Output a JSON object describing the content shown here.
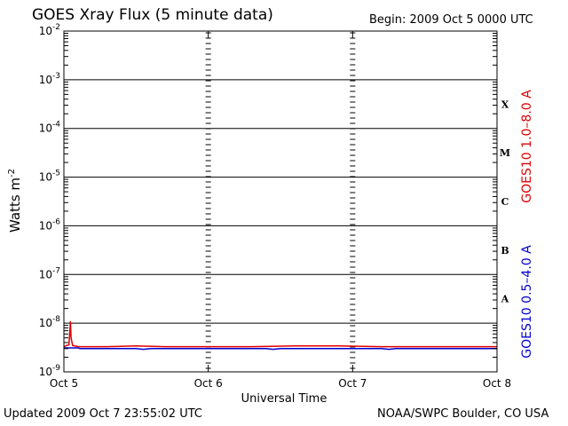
{
  "header": {
    "title": "GOES Xray Flux (5 minute data)",
    "begin": "Begin:  2009 Oct 5 0000 UTC"
  },
  "footer": {
    "updated": "Updated 2009 Oct  7 23:55:02 UTC",
    "credit": "NOAA/SWPC Boulder, CO USA"
  },
  "chart_data": {
    "type": "line",
    "title": "GOES Xray Flux (5 minute data)",
    "xlabel": "Universal Time",
    "ylabel": "Watts m",
    "ylabel_exponent": "-2",
    "x_ticks": [
      "Oct 5",
      "Oct 6",
      "Oct 7",
      "Oct 8"
    ],
    "x_range_days": [
      0,
      3
    ],
    "y_scale": "log",
    "ylim": [
      1e-09,
      0.01
    ],
    "y_ticks": [
      {
        "base": "10",
        "exp": "-9"
      },
      {
        "base": "10",
        "exp": "-8"
      },
      {
        "base": "10",
        "exp": "-7"
      },
      {
        "base": "10",
        "exp": "-6"
      },
      {
        "base": "10",
        "exp": "-5"
      },
      {
        "base": "10",
        "exp": "-4"
      },
      {
        "base": "10",
        "exp": "-3"
      },
      {
        "base": "10",
        "exp": "-2"
      }
    ],
    "flare_classes": [
      "A",
      "B",
      "C",
      "M",
      "X"
    ],
    "grid": "horizontal lines at each decade; dashed vertical lines at day boundaries",
    "series": [
      {
        "name": "GOES10 1.0–8.0 A",
        "color": "#e00000",
        "x": [
          0,
          0.02,
          0.035,
          0.04,
          0.045,
          0.05,
          0.06,
          0.1,
          0.3,
          0.5,
          0.7,
          1.0,
          1.3,
          1.6,
          1.9,
          2.2,
          2.5,
          2.8,
          3.0
        ],
        "y": [
          3.3e-09,
          3.5e-09,
          3.6e-09,
          6e-09,
          1.1e-08,
          5e-09,
          3.5e-09,
          3.3e-09,
          3.3e-09,
          3.4e-09,
          3.3e-09,
          3.3e-09,
          3.3e-09,
          3.4e-09,
          3.4e-09,
          3.3e-09,
          3.3e-09,
          3.3e-09,
          3.3e-09
        ]
      },
      {
        "name": "GOES10 0.5–4.0 A",
        "color": "#0000d0",
        "x": [
          0,
          0.1,
          0.11,
          0.3,
          0.5,
          0.55,
          0.6,
          0.8,
          1.0,
          1.2,
          1.4,
          1.45,
          1.5,
          1.7,
          2.0,
          2.2,
          2.25,
          2.3,
          2.6,
          3.0
        ],
        "y": [
          3.1e-09,
          3.1e-09,
          3e-09,
          3e-09,
          3e-09,
          2.9e-09,
          3e-09,
          3e-09,
          3e-09,
          3e-09,
          3e-09,
          2.9e-09,
          3e-09,
          3e-09,
          3e-09,
          3e-09,
          2.9e-09,
          3e-09,
          3e-09,
          3e-09
        ]
      }
    ]
  }
}
